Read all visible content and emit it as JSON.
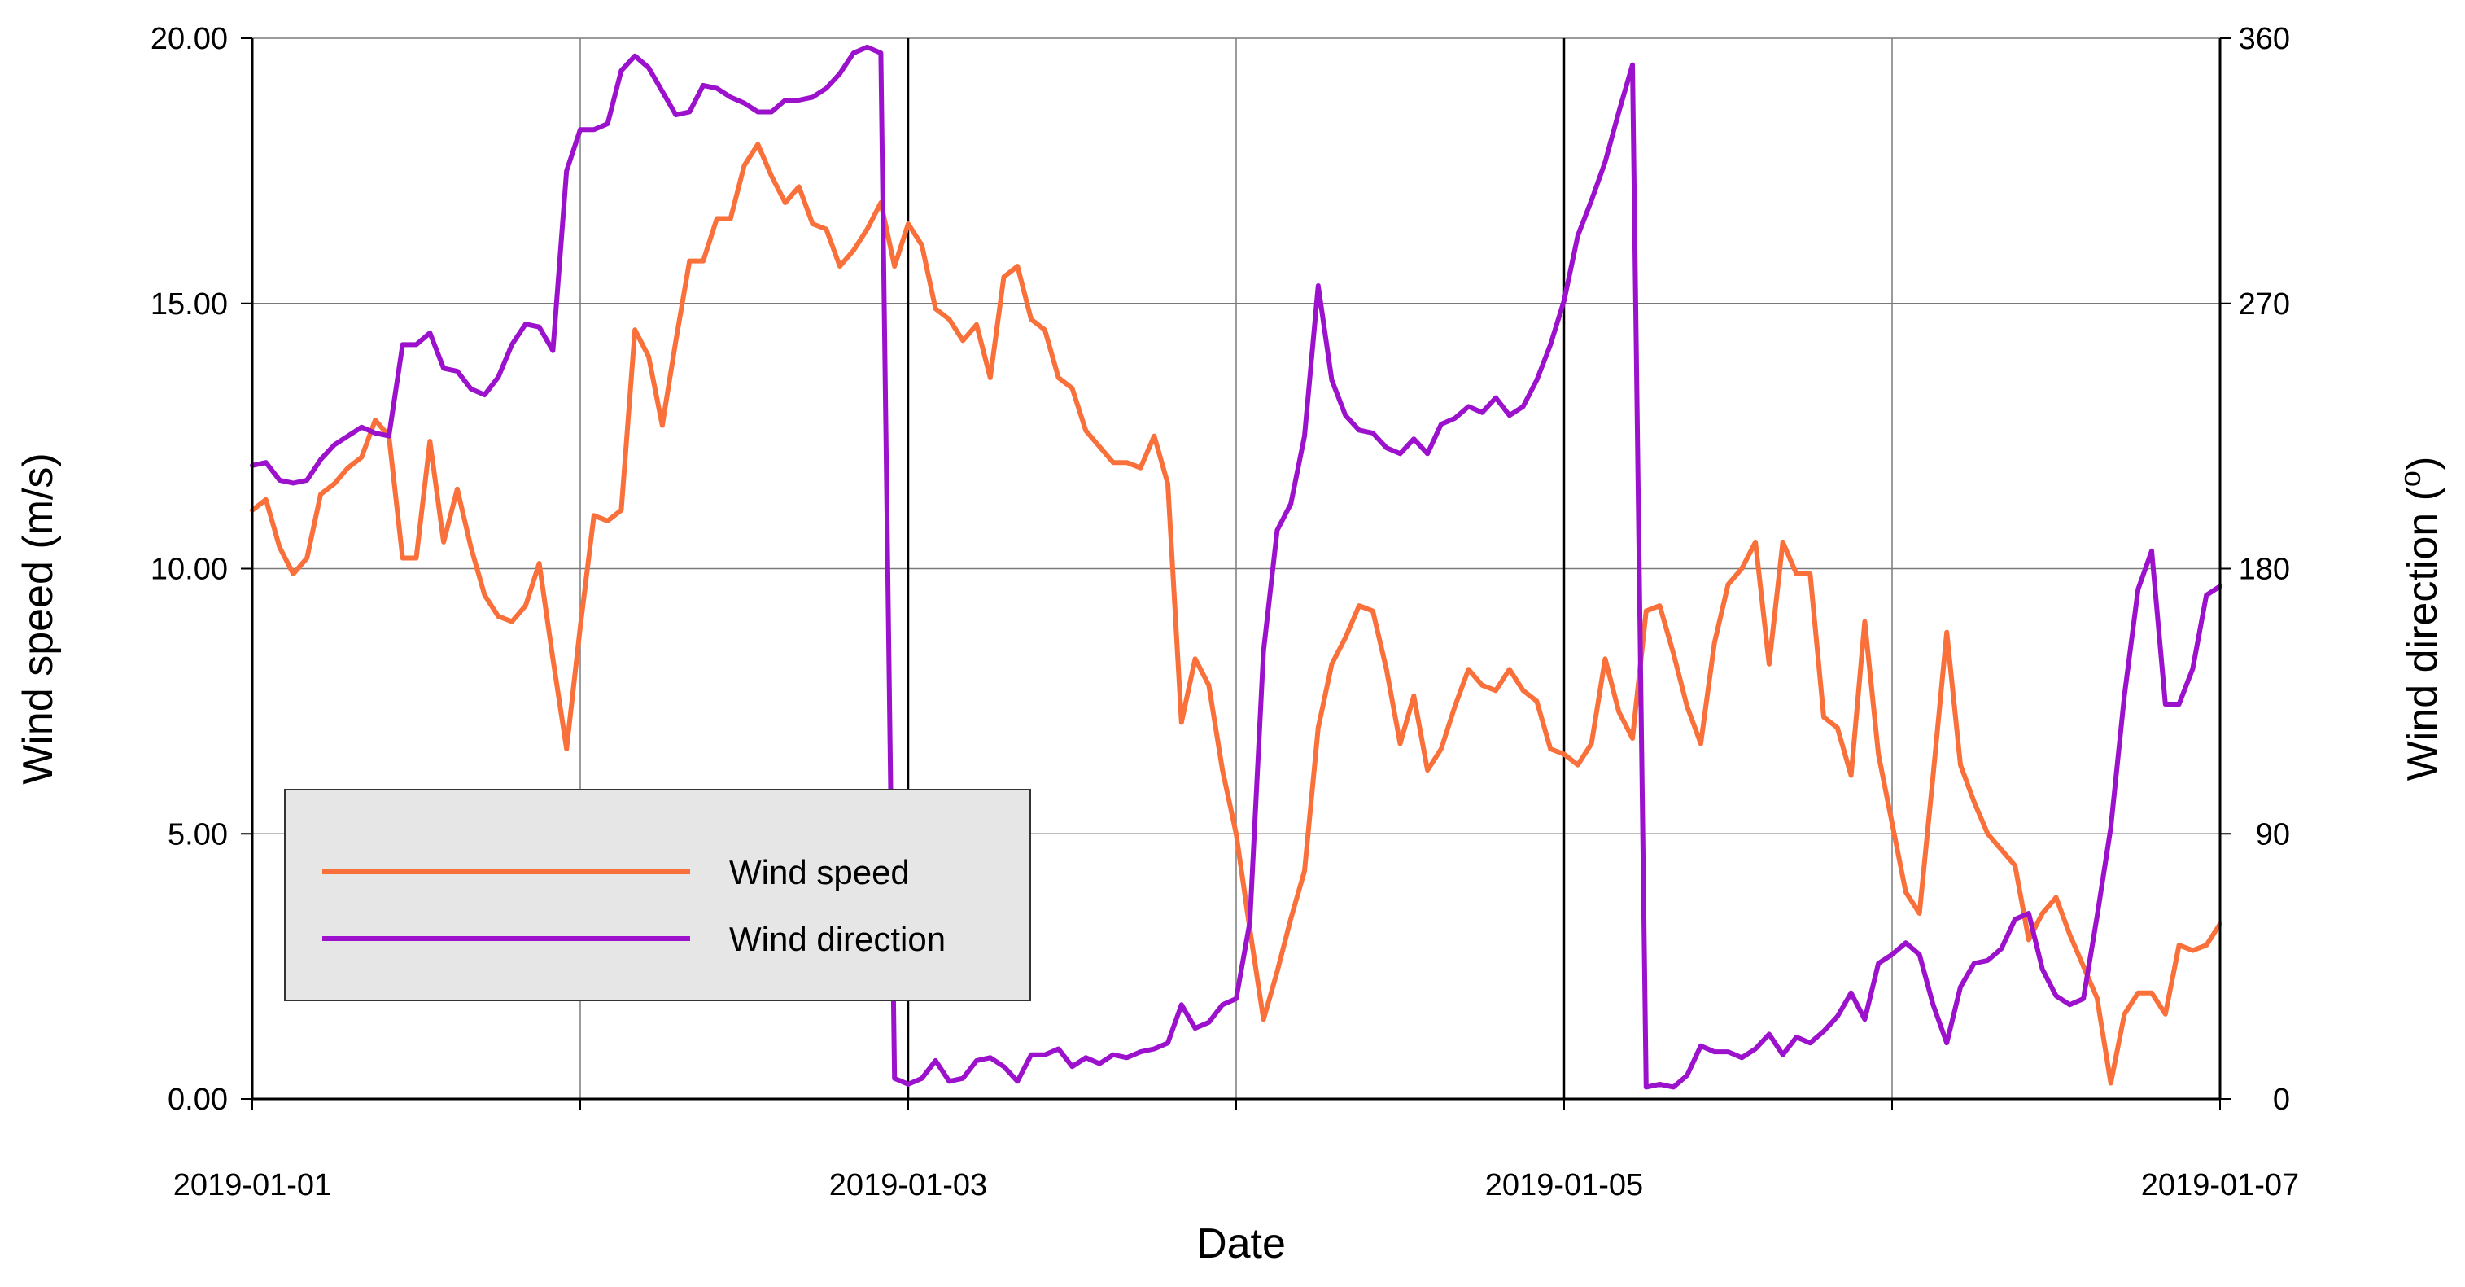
{
  "chart_data": {
    "type": "line",
    "xlabel": "Date",
    "ylabel_left": "Wind speed (m/s)",
    "ylabel_right_text": "Wind direction (",
    "ylabel_right_sup": "o",
    "ylabel_right_close": ")",
    "x_range": [
      "2019-01-01 00:00",
      "2019-01-07 00:00"
    ],
    "x_ticks": [
      "2019-01-01",
      "2019-01-03",
      "2019-01-05",
      "2019-01-07"
    ],
    "x_minor_gridlines": [
      "2019-01-02",
      "2019-01-04",
      "2019-01-06"
    ],
    "y_left_range": [
      0,
      20
    ],
    "y_left_ticks": [
      "0.00",
      "5.00",
      "10.00",
      "15.00",
      "20.00"
    ],
    "y_right_range": [
      0,
      360
    ],
    "y_right_ticks": [
      "0",
      "90",
      "180",
      "270",
      "360"
    ],
    "grid": true,
    "legend_position": "lower-left",
    "legend_background": "#e6e6e6",
    "series": [
      {
        "name": "Wind speed",
        "axis": "left",
        "color": "#f9703a",
        "values": [
          11.1,
          11.3,
          10.4,
          9.9,
          10.2,
          11.4,
          11.6,
          11.9,
          12.1,
          12.8,
          12.5,
          10.2,
          10.2,
          12.4,
          10.5,
          11.5,
          10.4,
          9.5,
          9.1,
          9.0,
          9.3,
          10.1,
          8.3,
          6.6,
          8.9,
          11.0,
          10.9,
          11.1,
          14.5,
          14.0,
          12.7,
          14.3,
          15.8,
          15.8,
          16.6,
          16.6,
          17.6,
          18.0,
          17.4,
          16.9,
          17.2,
          16.5,
          16.4,
          15.7,
          16.0,
          16.4,
          16.9,
          15.7,
          16.5,
          16.1,
          14.9,
          14.7,
          14.3,
          14.6,
          13.6,
          15.5,
          15.7,
          14.7,
          14.5,
          13.6,
          13.4,
          12.6,
          12.3,
          12.0,
          12.0,
          11.9,
          12.5,
          11.6,
          7.1,
          8.3,
          7.8,
          6.2,
          5.0,
          3.2,
          1.5,
          2.4,
          3.4,
          4.3,
          7.0,
          8.2,
          8.7,
          9.3,
          9.2,
          8.1,
          6.7,
          7.6,
          6.2,
          6.6,
          7.4,
          8.1,
          7.8,
          7.7,
          8.1,
          7.7,
          7.5,
          6.6,
          6.5,
          6.3,
          6.7,
          8.3,
          7.3,
          6.8,
          9.2,
          9.3,
          8.4,
          7.4,
          6.7,
          8.6,
          9.7,
          10.0,
          10.5,
          8.2,
          10.5,
          9.9,
          9.9,
          7.2,
          7.0,
          6.1,
          9.0,
          6.5,
          5.2,
          3.9,
          3.5,
          6.1,
          8.8,
          6.3,
          5.6,
          5.0,
          4.7,
          4.4,
          3.0,
          3.5,
          3.8,
          3.1,
          2.5,
          1.9,
          0.3,
          1.6,
          2.0,
          2.0,
          1.6,
          2.9,
          2.8,
          2.9,
          3.3
        ]
      },
      {
        "name": "Wind direction",
        "axis": "right",
        "color": "#9b11cc",
        "values": [
          215,
          216,
          210,
          209,
          210,
          217,
          222,
          225,
          228,
          226,
          225,
          256,
          256,
          260,
          248,
          247,
          241,
          239,
          245,
          256,
          263,
          262,
          254,
          315,
          329,
          329,
          331,
          349,
          354,
          350,
          342,
          334,
          335,
          344,
          343,
          340,
          338,
          335,
          335,
          339,
          339,
          340,
          343,
          348,
          355,
          357,
          355,
          7,
          5,
          7,
          13,
          6,
          7,
          13,
          14,
          11,
          6,
          15,
          15,
          17,
          11,
          14,
          12,
          15,
          14,
          16,
          17,
          19,
          32,
          24,
          26,
          32,
          34,
          60,
          152,
          193,
          202,
          225,
          276,
          244,
          232,
          227,
          226,
          221,
          219,
          224,
          219,
          229,
          231,
          235,
          233,
          238,
          232,
          235,
          244,
          256,
          271,
          293,
          305,
          318,
          335,
          351,
          4,
          5,
          4,
          8,
          18,
          16,
          16,
          14,
          17,
          22,
          15,
          21,
          19,
          23,
          28,
          36,
          27,
          46,
          49,
          53,
          49,
          32,
          19,
          38,
          46,
          47,
          51,
          61,
          63,
          44,
          35,
          32,
          34,
          62,
          92,
          137,
          173,
          186,
          134,
          134,
          146,
          171,
          174
        ]
      }
    ]
  }
}
